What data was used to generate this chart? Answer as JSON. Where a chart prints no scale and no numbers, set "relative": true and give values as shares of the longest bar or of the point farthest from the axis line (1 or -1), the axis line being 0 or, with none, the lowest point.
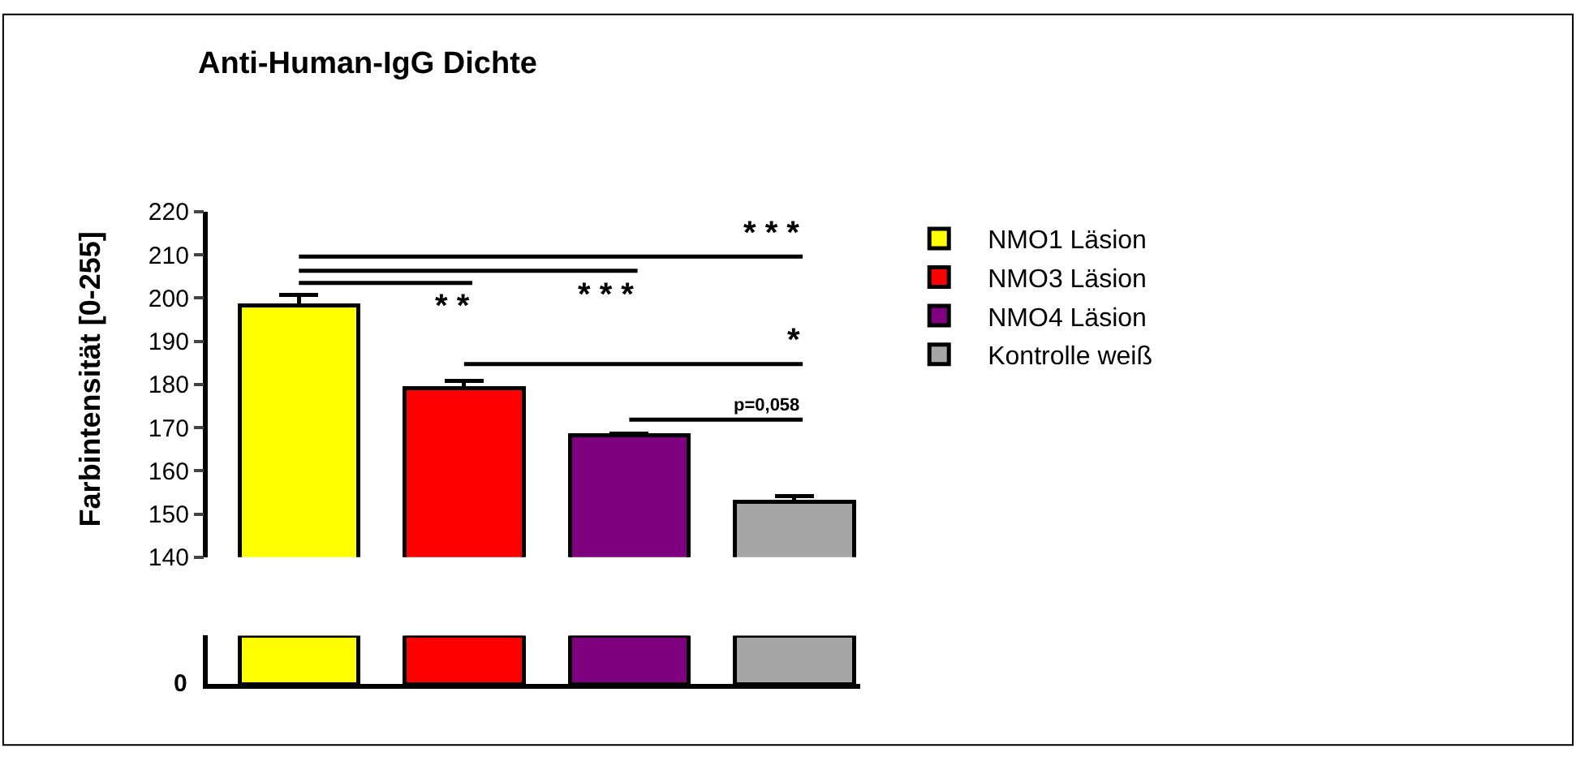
{
  "chart_data": [
    {
      "type": "bar",
      "title": "Anti-Human-IgG Dichte",
      "ylabel": "Farbintensität [0-255]",
      "categories": [
        null,
        null,
        null,
        null
      ],
      "series": [
        {
          "name": "NMO1 Läsion",
          "color": "#ffff00",
          "values": [
            198.3,
            null,
            null,
            null
          ],
          "errors": [
            [
              198.3,
              200.7
            ],
            null,
            null,
            null
          ]
        },
        {
          "name": "NMO3 Läsion",
          "color": "#ff0000",
          "values": [
            null,
            179.2,
            null,
            null
          ],
          "errors": [
            null,
            [
              179.2,
              180.8
            ],
            null,
            null
          ]
        },
        {
          "name": "NMO4 Läsion",
          "color": "#7f007f",
          "values": [
            null,
            null,
            168.2,
            null
          ],
          "errors": [
            null,
            null,
            [
              168.2,
              168.7
            ],
            null
          ]
        },
        {
          "name": "Kontrolle weiß",
          "color": "#a6a6a6",
          "values": [
            null,
            null,
            null,
            152.8
          ],
          "errors": [
            null,
            null,
            null,
            [
              152.8,
              154.2
            ]
          ]
        }
      ],
      "ylim": [
        140,
        220
      ],
      "yticks": [
        140,
        150,
        160,
        170,
        180,
        190,
        200,
        210,
        220
      ],
      "legend": "top right",
      "stacked": true,
      "annotations": [
        "* * *",
        "* *",
        "* * *",
        "*",
        "p=0,058"
      ]
    },
    {
      "type": "bar",
      "relative": true,
      "categories": [
        null,
        null,
        null,
        null
      ],
      "values": [
        1,
        1,
        1,
        1
      ],
      "colors": [
        "#ffff00",
        "#ff0000",
        "#7f007f",
        "#a6a6a6"
      ],
      "annotations": [
        "0"
      ],
      "tick_labels": false
    }
  ]
}
